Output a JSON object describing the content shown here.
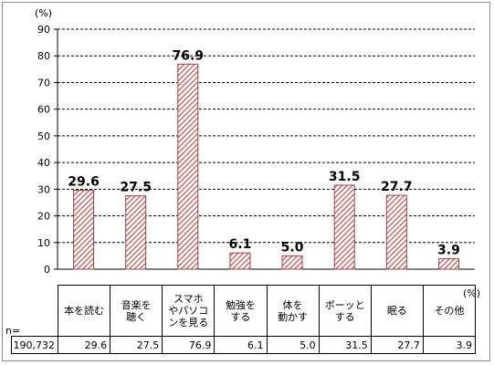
{
  "chart_data": {
    "type": "bar",
    "unit_label_top": "(%)",
    "unit_label_right": "(%)",
    "categories": [
      "本を読む",
      "音楽を聴く",
      "スマホやパソコンを見る",
      "勉強をする",
      "体を動かす",
      "ボーッとする",
      "眠る",
      "その他"
    ],
    "category_lines": [
      [
        "本を読む"
      ],
      [
        "音楽を",
        "聴く"
      ],
      [
        "スマホ",
        "やパソコ",
        "ンを見る"
      ],
      [
        "勉強を",
        "する"
      ],
      [
        "体を",
        "動かす"
      ],
      [
        "ボーッと",
        "する"
      ],
      [
        "眠る"
      ],
      [
        "その他"
      ]
    ],
    "values": [
      29.6,
      27.5,
      76.9,
      6.1,
      5.0,
      31.5,
      27.7,
      3.9
    ],
    "value_labels": [
      "29.6",
      "27.5",
      "76.9",
      "6.1",
      "5.0",
      "31.5",
      "27.7",
      "3.9"
    ],
    "ylim": [
      0,
      90
    ],
    "yticks": [
      0,
      10,
      20,
      30,
      40,
      50,
      60,
      70,
      80,
      90
    ],
    "grid": "horizontal-dashed",
    "bar_color": "#c0504d",
    "n_label": "n=",
    "n_value": "190,732"
  }
}
